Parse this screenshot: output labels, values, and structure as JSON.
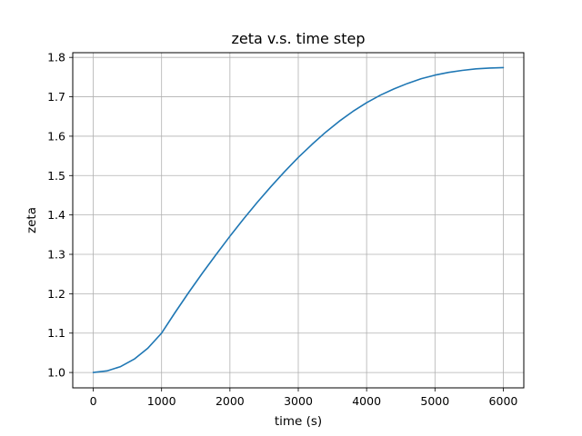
{
  "chart_data": {
    "type": "line",
    "title": "zeta v.s. time step",
    "xlabel": "time (s)",
    "ylabel": "zeta",
    "xlim": [
      -300,
      6300
    ],
    "ylim": [
      0.961,
      1.812
    ],
    "xticks": [
      0,
      1000,
      2000,
      3000,
      4000,
      5000,
      6000
    ],
    "xtick_labels": [
      "0",
      "1000",
      "2000",
      "3000",
      "4000",
      "5000",
      "6000"
    ],
    "yticks": [
      1.0,
      1.1,
      1.2,
      1.3,
      1.4,
      1.5,
      1.6,
      1.7,
      1.8
    ],
    "ytick_labels": [
      "1.0",
      "1.1",
      "1.2",
      "1.3",
      "1.4",
      "1.5",
      "1.6",
      "1.7",
      "1.8"
    ],
    "grid": true,
    "legend": "none",
    "series": [
      {
        "color": "#1f77b4",
        "x": [
          0,
          200,
          400,
          600,
          800,
          1000,
          1200,
          1400,
          1600,
          1800,
          2000,
          2200,
          2400,
          2600,
          2800,
          3000,
          3200,
          3400,
          3600,
          3800,
          4000,
          4200,
          4400,
          4600,
          4800,
          5000,
          5200,
          5400,
          5600,
          5800,
          6000
        ],
        "y": [
          1.0,
          1.004,
          1.015,
          1.034,
          1.062,
          1.1,
          1.153,
          1.204,
          1.253,
          1.3,
          1.346,
          1.39,
          1.432,
          1.472,
          1.51,
          1.546,
          1.579,
          1.61,
          1.638,
          1.663,
          1.685,
          1.704,
          1.72,
          1.734,
          1.746,
          1.755,
          1.762,
          1.767,
          1.771,
          1.773,
          1.774
        ]
      }
    ]
  }
}
